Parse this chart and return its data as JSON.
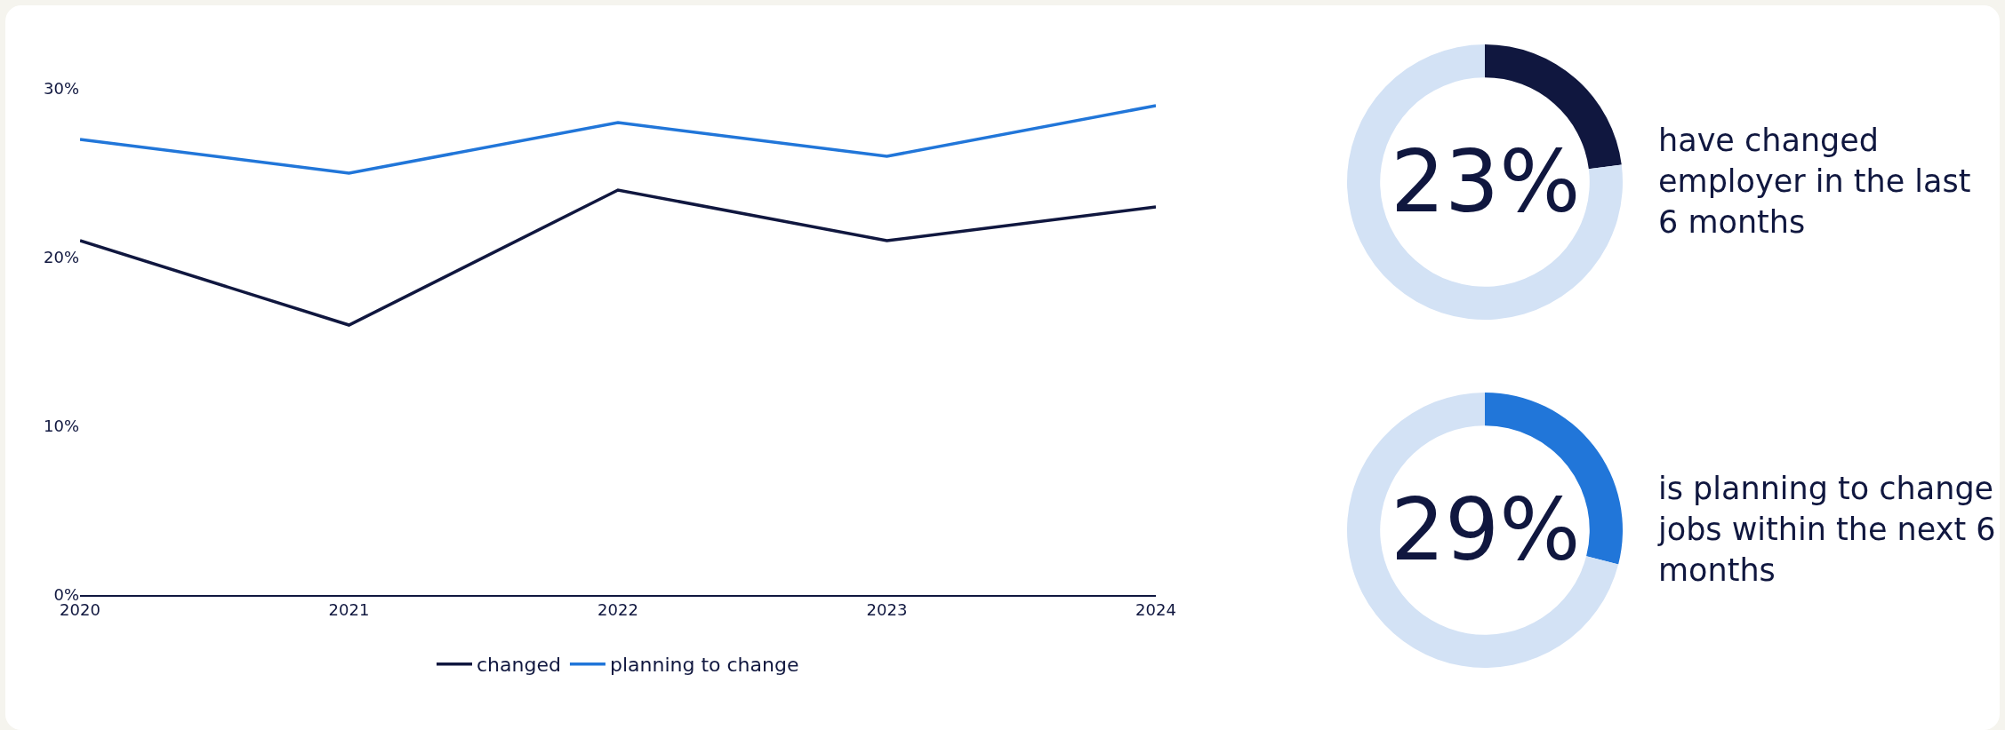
{
  "chart_data": [
    {
      "type": "line",
      "categories": [
        "2020",
        "2021",
        "2022",
        "2023",
        "2024"
      ],
      "series": [
        {
          "name": "changed",
          "color": "#10173f",
          "values": [
            21,
            16,
            24,
            21,
            23
          ]
        },
        {
          "name": "planning to change",
          "color": "#2176d9",
          "values": [
            27,
            25,
            28,
            26,
            29
          ]
        }
      ],
      "ylim": [
        0,
        30
      ],
      "yticks": [
        {
          "value": 0,
          "label": "0%"
        },
        {
          "value": 10,
          "label": "10%"
        },
        {
          "value": 20,
          "label": "20%"
        },
        {
          "value": 30,
          "label": "30%"
        }
      ],
      "grid": false,
      "legend": "bottom",
      "marker": "none",
      "line_style": "solid"
    },
    {
      "type": "donut",
      "categories": [
        null,
        null
      ],
      "values": [
        23,
        77
      ],
      "colors": [
        "#10173f",
        "#d3e2f5"
      ],
      "value_labels": [
        "23%",
        null
      ],
      "annotations": [
        "have changed employer in the last 6 months"
      ]
    },
    {
      "type": "donut",
      "categories": [
        null,
        null
      ],
      "values": [
        29,
        71
      ],
      "colors": [
        "#2176d9",
        "#d3e2f5"
      ],
      "value_labels": [
        "29%",
        null
      ],
      "annotations": [
        "is planning to change jobs within the next 6 months"
      ]
    }
  ]
}
